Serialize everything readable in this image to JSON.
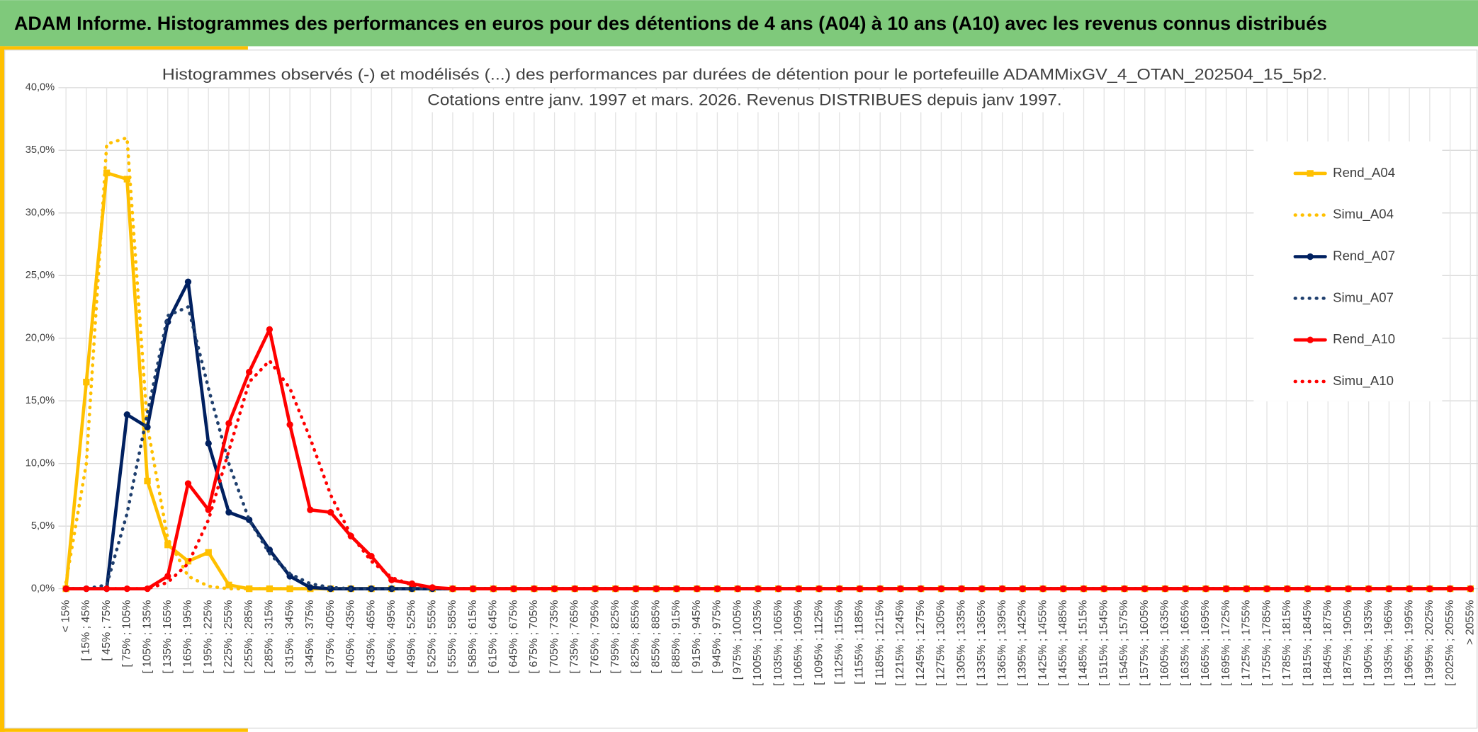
{
  "header": {
    "title": "ADAM Informe. Histogrammes des performances en euros pour des détentions de 4 ans (A04) à 10 ans (A10) avec les revenus connus distribués"
  },
  "chart_data": {
    "type": "line",
    "title": "Histogrammes observés (-) et modélisés (...) des performances par durées de détention pour le portefeuille ADAMMixGV_4_OTAN_202504_15_5p2.",
    "subtitle": "Cotations entre janv. 1997 et mars. 2026. Revenus DISTRIBUES depuis janv 1997.",
    "categories": [
      "< 15%",
      "[ 15% ; 45%",
      "[ 45% ; 75%",
      "[ 75% ; 105%",
      "[ 105% ; 135%",
      "[ 135% ; 165%",
      "[ 165% ; 195%",
      "[ 195% ; 225%",
      "[ 225% ; 255%",
      "[ 255% ; 285%",
      "[ 285% ; 315%",
      "[ 315% ; 345%",
      "[ 345% ; 375%",
      "[ 375% ; 405%",
      "[ 405% ; 435%",
      "[ 435% ; 465%",
      "[ 465% ; 495%",
      "[ 495% ; 525%",
      "[ 525% ; 555%",
      "[ 555% ; 585%",
      "[ 585% ; 615%",
      "[ 615% ; 645%",
      "[ 645% ; 675%",
      "[ 675% ; 705%",
      "[ 705% ; 735%",
      "[ 735% ; 765%",
      "[ 765% ; 795%",
      "[ 795% ; 825%",
      "[ 825% ; 855%",
      "[ 855% ; 885%",
      "[ 885% ; 915%",
      "[ 915% ; 945%",
      "[ 945% ; 975%",
      "[ 975% ; 1005%",
      "[ 1005% ; 1035%",
      "[ 1035% ; 1065%",
      "[ 1065% ; 1095%",
      "[ 1095% ; 1125%",
      "[ 1125% ; 1155%",
      "[ 1155% ; 1185%",
      "[ 1185% ; 1215%",
      "[ 1215% ; 1245%",
      "[ 1245% ; 1275%",
      "[ 1275% ; 1305%",
      "[ 1305% ; 1335%",
      "[ 1335% ; 1365%",
      "[ 1365% ; 1395%",
      "[ 1395% ; 1425%",
      "[ 1425% ; 1455%",
      "[ 1455% ; 1485%",
      "[ 1485% ; 1515%",
      "[ 1515% ; 1545%",
      "[ 1545% ; 1575%",
      "[ 1575% ; 1605%",
      "[ 1605% ; 1635%",
      "[ 1635% ; 1665%",
      "[ 1665% ; 1695%",
      "[ 1695% ; 1725%",
      "[ 1725% ; 1755%",
      "[ 1755% ; 1785%",
      "[ 1785% ; 1815%",
      "[ 1815% ; 1845%",
      "[ 1845% ; 1875%",
      "[ 1875% ; 1905%",
      "[ 1905% ; 1935%",
      "[ 1935% ; 1965%",
      "[ 1965% ; 1995%",
      "[ 1995% ; 2025%",
      "[ 2025% ; 2055%",
      "> 2055%"
    ],
    "series": [
      {
        "name": "Rend_A04",
        "color": "#ffc000",
        "style": "solid",
        "marker": "square",
        "values": [
          0,
          16.5,
          33.2,
          32.7,
          8.6,
          3.5,
          2.2,
          2.9,
          0.3,
          0,
          0,
          0,
          0,
          0,
          0,
          0,
          0,
          0,
          0,
          0,
          0,
          0,
          0,
          0,
          0,
          0,
          0,
          0,
          0,
          0,
          0,
          0,
          0,
          0,
          0,
          0,
          0,
          0,
          0,
          0,
          0,
          0,
          0,
          0,
          0,
          0,
          0,
          0,
          0,
          0,
          0,
          0,
          0,
          0,
          0,
          0,
          0,
          0,
          0,
          0,
          0,
          0,
          0,
          0,
          0,
          0,
          0,
          0,
          0,
          0
        ]
      },
      {
        "name": "Simu_A04",
        "color": "#ffc000",
        "style": "dotted",
        "values": [
          0.5,
          10,
          35.5,
          36,
          13,
          4,
          1,
          0.2,
          0,
          0,
          0,
          0,
          0,
          0,
          0,
          0,
          0,
          0,
          0,
          0,
          0,
          0,
          0,
          0,
          0,
          0,
          0,
          0,
          0,
          0,
          0,
          0,
          0,
          0,
          0,
          0,
          0,
          0,
          0,
          0,
          0,
          0,
          0,
          0,
          0,
          0,
          0,
          0,
          0,
          0,
          0,
          0,
          0,
          0,
          0,
          0,
          0,
          0,
          0,
          0,
          0,
          0,
          0,
          0,
          0,
          0,
          0,
          0,
          0,
          0
        ]
      },
      {
        "name": "Rend_A07",
        "color": "#002060",
        "style": "solid",
        "marker": "circle",
        "values": [
          0,
          0,
          0,
          13.9,
          12.9,
          21.3,
          24.5,
          11.6,
          6.1,
          5.5,
          3.1,
          1,
          0.1,
          0,
          0,
          0,
          0,
          0,
          0,
          0,
          0,
          0,
          0,
          0,
          0,
          0,
          0,
          0,
          0,
          0,
          0,
          0,
          0,
          0,
          0,
          0,
          0,
          0,
          0,
          0,
          0,
          0,
          0,
          0,
          0,
          0,
          0,
          0,
          0,
          0,
          0,
          0,
          0,
          0,
          0,
          0,
          0,
          0,
          0,
          0,
          0,
          0,
          0,
          0,
          0,
          0,
          0,
          0,
          0,
          0
        ]
      },
      {
        "name": "Simu_A07",
        "color": "#1f3f6e",
        "style": "dotted",
        "values": [
          0,
          0,
          0.3,
          6,
          14,
          21.8,
          22.5,
          16,
          10,
          5.5,
          2.8,
          1.2,
          0.4,
          0.1,
          0,
          0,
          0,
          0,
          0,
          0,
          0,
          0,
          0,
          0,
          0,
          0,
          0,
          0,
          0,
          0,
          0,
          0,
          0,
          0,
          0,
          0,
          0,
          0,
          0,
          0,
          0,
          0,
          0,
          0,
          0,
          0,
          0,
          0,
          0,
          0,
          0,
          0,
          0,
          0,
          0,
          0,
          0,
          0,
          0,
          0,
          0,
          0,
          0,
          0,
          0,
          0,
          0,
          0,
          0,
          0
        ]
      },
      {
        "name": "Rend_A10",
        "color": "#ff0000",
        "style": "solid",
        "marker": "circle",
        "values": [
          0,
          0,
          0,
          0,
          0,
          1,
          8.4,
          6.3,
          13.2,
          17.3,
          20.7,
          13.1,
          6.3,
          6.1,
          4.2,
          2.6,
          0.7,
          0.4,
          0.1,
          0,
          0,
          0,
          0,
          0,
          0,
          0,
          0,
          0,
          0,
          0,
          0,
          0,
          0,
          0,
          0,
          0,
          0,
          0,
          0,
          0,
          0,
          0,
          0,
          0,
          0,
          0,
          0,
          0,
          0,
          0,
          0,
          0,
          0,
          0,
          0,
          0,
          0,
          0,
          0,
          0,
          0,
          0,
          0,
          0,
          0,
          0,
          0,
          0,
          0,
          0
        ]
      },
      {
        "name": "Simu_A10",
        "color": "#ff0000",
        "style": "dotted",
        "values": [
          0,
          0,
          0,
          0,
          0,
          0.5,
          2,
          5.5,
          11,
          16.5,
          18.2,
          16,
          12,
          7.5,
          4.3,
          2.2,
          0.9,
          0.3,
          0.1,
          0,
          0,
          0,
          0,
          0,
          0,
          0,
          0,
          0,
          0,
          0,
          0,
          0,
          0,
          0,
          0,
          0,
          0,
          0,
          0,
          0,
          0,
          0,
          0,
          0,
          0,
          0,
          0,
          0,
          0,
          0,
          0,
          0,
          0,
          0,
          0,
          0,
          0,
          0,
          0,
          0,
          0,
          0,
          0,
          0,
          0,
          0,
          0,
          0,
          0,
          0
        ]
      }
    ],
    "ylim": [
      0,
      40
    ],
    "yticks": [
      {
        "value": 0,
        "label": "0,0%"
      },
      {
        "value": 5,
        "label": "5,0%"
      },
      {
        "value": 10,
        "label": "10,0%"
      },
      {
        "value": 15,
        "label": "15,0%"
      },
      {
        "value": 20,
        "label": "20,0%"
      },
      {
        "value": 25,
        "label": "25,0%"
      },
      {
        "value": 30,
        "label": "30,0%"
      },
      {
        "value": 35,
        "label": "35,0%"
      },
      {
        "value": 40,
        "label": "40,0%"
      }
    ],
    "grid": true,
    "legend": "right"
  }
}
